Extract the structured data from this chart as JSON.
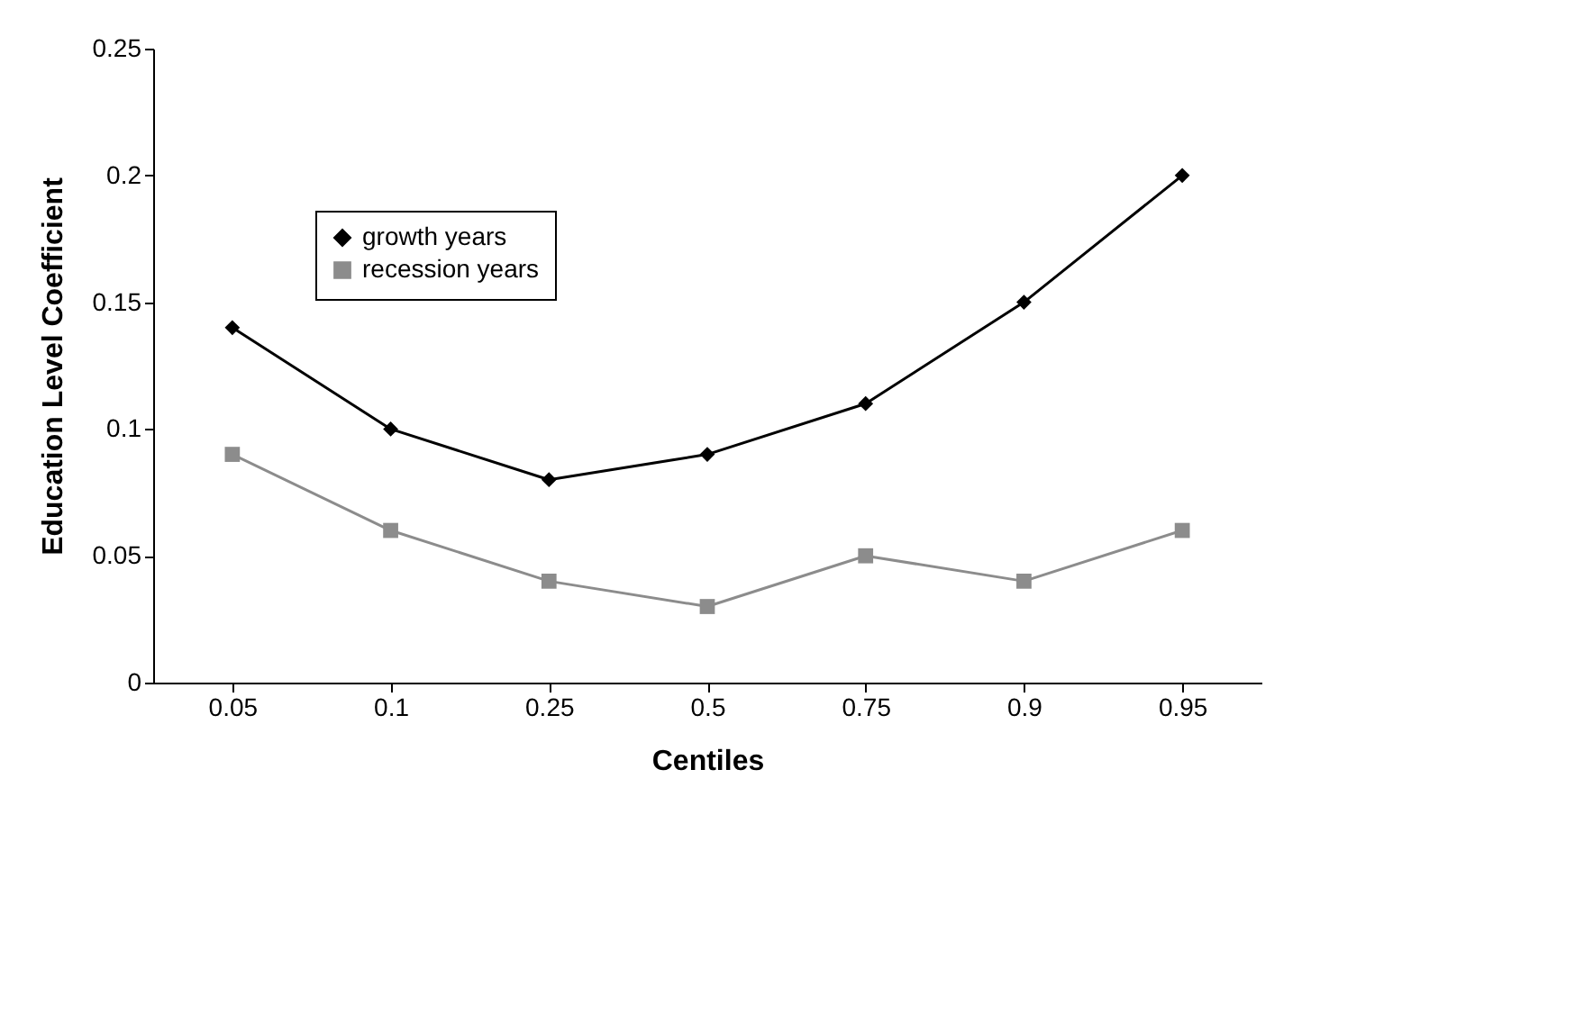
{
  "chart_data": {
    "type": "line",
    "xlabel": "Centiles",
    "ylabel": "Education Level Coefficient",
    "categories": [
      "0.05",
      "0.1",
      "0.25",
      "0.5",
      "0.75",
      "0.9",
      "0.95"
    ],
    "series": [
      {
        "name": "growth years",
        "color": "#000000",
        "marker": "diamond",
        "values": [
          0.14,
          0.1,
          0.08,
          0.09,
          0.11,
          0.15,
          0.2
        ]
      },
      {
        "name": "recession years",
        "color": "#8c8c8c",
        "marker": "square",
        "values": [
          0.09,
          0.06,
          0.04,
          0.03,
          0.05,
          0.04,
          0.06
        ]
      }
    ],
    "ylim": [
      0,
      0.25
    ],
    "yticks": [
      0,
      0.05,
      0.1,
      0.15,
      0.2,
      0.25
    ],
    "grid": false,
    "legend": "top left",
    "line_style": "solid"
  }
}
